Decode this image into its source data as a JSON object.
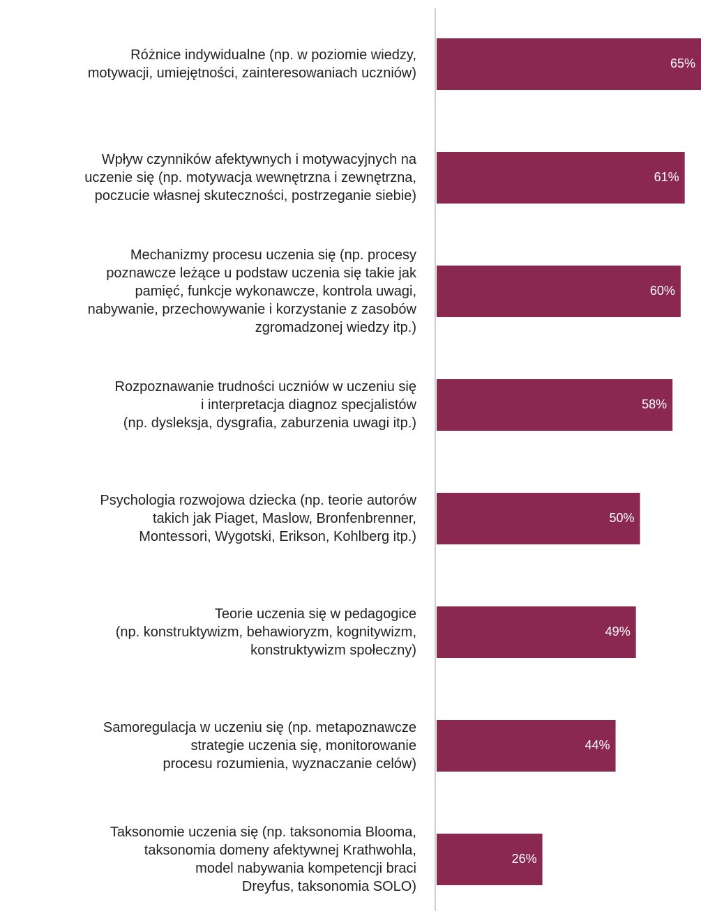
{
  "chart_data": {
    "type": "bar",
    "orientation": "horizontal",
    "categories": [
      "Różnice indywidualne (np. w poziomie wiedzy,\nmotywacji, umiejętności, zainteresowaniach uczniów)",
      "Wpływ czynników afektywnych i motywacyjnych na\nuczenie się (np. motywacja wewnętrzna i zewnętrzna,\npoczucie własnej skuteczności, postrzeganie siebie)",
      "Mechanizmy procesu uczenia się (np. procesy\npoznawcze leżące u podstaw uczenia się takie jak\npamięć, funkcje wykonawcze, kontrola uwagi,\nnabywanie, przechowywanie i korzystanie z zasobów\nzgromadzonej wiedzy itp.)",
      "Rozpoznawanie trudności uczniów w uczeniu się\ni interpretacja diagnoz specjalistów\n(np. dysleksja, dysgrafia, zaburzenia uwagi itp.)",
      "Psychologia rozwojowa dziecka (np. teorie autorów\ntakich jak Piaget, Maslow, Bronfenbrenner,\nMontessori, Wygotski, Erikson, Kohlberg itp.)",
      "Teorie uczenia się w pedagogice\n(np. konstruktywizm, behawioryzm, kognitywizm,\nkonstruktywizm społeczny)",
      "Samoregulacja w uczeniu się (np. metapoznawcze\nstrategie uczenia się, monitorowanie\nprocesu rozumienia, wyznaczanie celów)",
      "Taksonomie uczenia się (np. taksonomia Blooma,\ntaksonomia domeny afektywnej Krathwohla,\nmodel nabywania kompetencji braci\nDreyfus, taksonomia SOLO)"
    ],
    "values": [
      65,
      61,
      60,
      58,
      50,
      49,
      44,
      26
    ],
    "value_labels": [
      "65%",
      "61%",
      "60%",
      "58%",
      "50%",
      "49%",
      "44%",
      "26%"
    ],
    "color": "#8b284f"
  }
}
